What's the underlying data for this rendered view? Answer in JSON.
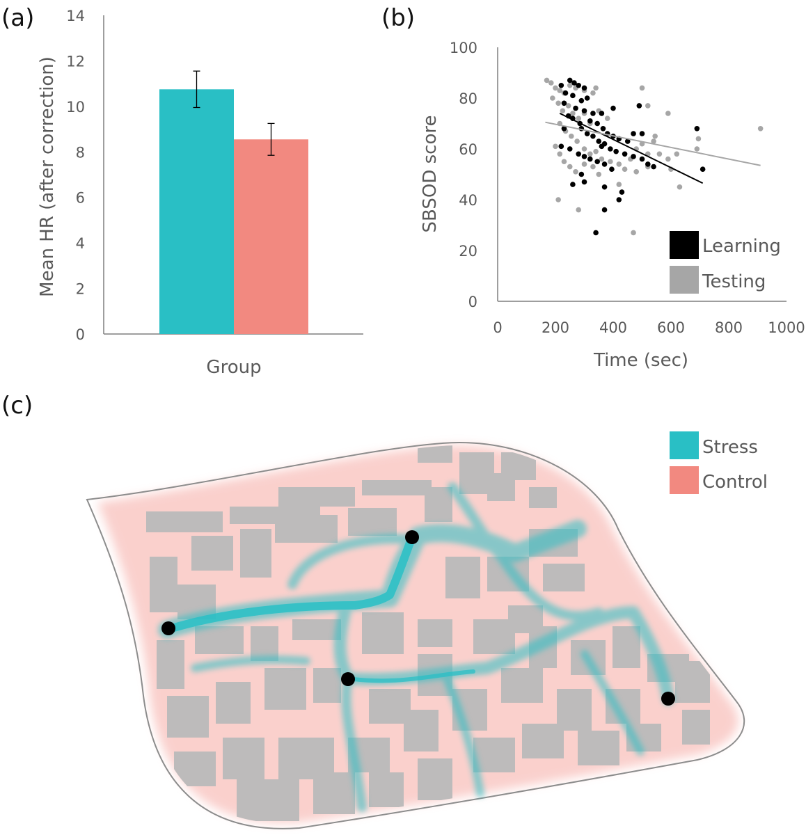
{
  "panels": {
    "a": "(a)",
    "b": "(b)",
    "c": "(c)"
  },
  "colors": {
    "stress": "#29bfc5",
    "control": "#f28980",
    "learning": "#000000",
    "testing": "#a6a6a6",
    "building": "#bdbbbb"
  },
  "chart_data": [
    {
      "id": "a",
      "type": "bar",
      "title": "",
      "xlabel": "Group",
      "ylabel": "Mean HR (after correction)",
      "ylim": [
        0,
        14
      ],
      "yticks": [
        0,
        2,
        4,
        6,
        8,
        10,
        12,
        14
      ],
      "grid": false,
      "series": [
        {
          "name": "Stress",
          "value": 10.75,
          "error": 0.8
        },
        {
          "name": "Control",
          "value": 8.55,
          "error": 0.7
        }
      ]
    },
    {
      "id": "b",
      "type": "scatter",
      "title": "",
      "xlabel": "Time (sec)",
      "ylabel": "SBSOD score",
      "xlim": [
        0,
        1000
      ],
      "ylim": [
        0,
        100
      ],
      "xticks": [
        0,
        200,
        400,
        600,
        800,
        1000
      ],
      "yticks": [
        0,
        20,
        40,
        60,
        80,
        100
      ],
      "legend_position": "bottom-right",
      "series": [
        {
          "name": "Learning",
          "points": [
            [
              220,
              85
            ],
            [
              250,
              87
            ],
            [
              265,
              86
            ],
            [
              280,
              85
            ],
            [
              300,
              84
            ],
            [
              235,
              82
            ],
            [
              260,
              81
            ],
            [
              290,
              79
            ],
            [
              310,
              80
            ],
            [
              230,
              78
            ],
            [
              270,
              76
            ],
            [
              300,
              75
            ],
            [
              330,
              74
            ],
            [
              245,
              73
            ],
            [
              260,
              72
            ],
            [
              285,
              70
            ],
            [
              320,
              71
            ],
            [
              345,
              70
            ],
            [
              365,
              68
            ],
            [
              380,
              66
            ],
            [
              400,
              65
            ],
            [
              360,
              74
            ],
            [
              400,
              76
            ],
            [
              420,
              64
            ],
            [
              450,
              63
            ],
            [
              470,
              66
            ],
            [
              290,
              68
            ],
            [
              310,
              66
            ],
            [
              330,
              65
            ],
            [
              350,
              63
            ],
            [
              370,
              62
            ],
            [
              390,
              60
            ],
            [
              410,
              59
            ],
            [
              440,
              58
            ],
            [
              470,
              57
            ],
            [
              500,
              56
            ],
            [
              520,
              54
            ],
            [
              540,
              53
            ],
            [
              220,
              61
            ],
            [
              250,
              60
            ],
            [
              280,
              58
            ],
            [
              300,
              57
            ],
            [
              320,
              56
            ],
            [
              345,
              55
            ],
            [
              370,
              54
            ],
            [
              395,
              52
            ],
            [
              290,
              50
            ],
            [
              300,
              47
            ],
            [
              260,
              46
            ],
            [
              370,
              45
            ],
            [
              430,
              43
            ],
            [
              420,
              40
            ],
            [
              370,
              36
            ],
            [
              340,
              27
            ],
            [
              710,
              52
            ],
            [
              690,
              68
            ],
            [
              490,
              77
            ],
            [
              360,
              61
            ],
            [
              500,
              66
            ],
            [
              230,
              68
            ]
          ]
        },
        {
          "name": "Testing",
          "points": [
            [
              170,
              87
            ],
            [
              185,
              86
            ],
            [
              200,
              84
            ],
            [
              215,
              83
            ],
            [
              230,
              82
            ],
            [
              250,
              85
            ],
            [
              270,
              84
            ],
            [
              300,
              83
            ],
            [
              330,
              82
            ],
            [
              340,
              84
            ],
            [
              190,
              80
            ],
            [
              210,
              78
            ],
            [
              225,
              75
            ],
            [
              245,
              77
            ],
            [
              260,
              74
            ],
            [
              280,
              72
            ],
            [
              300,
              74
            ],
            [
              320,
              70
            ],
            [
              350,
              75
            ],
            [
              380,
              72
            ],
            [
              215,
              70
            ],
            [
              235,
              67
            ],
            [
              255,
              65
            ],
            [
              275,
              63
            ],
            [
              300,
              60
            ],
            [
              320,
              58
            ],
            [
              340,
              59
            ],
            [
              360,
              56
            ],
            [
              390,
              55
            ],
            [
              420,
              54
            ],
            [
              440,
              52
            ],
            [
              460,
              56
            ],
            [
              480,
              60
            ],
            [
              500,
              62
            ],
            [
              520,
              58
            ],
            [
              540,
              63
            ],
            [
              560,
              58
            ],
            [
              590,
              56
            ],
            [
              620,
              58
            ],
            [
              200,
              61
            ],
            [
              215,
              58
            ],
            [
              230,
              55
            ],
            [
              250,
              53
            ],
            [
              270,
              51
            ],
            [
              300,
              54
            ],
            [
              330,
              53
            ],
            [
              350,
              50
            ],
            [
              210,
              40
            ],
            [
              280,
              36
            ],
            [
              420,
              46
            ],
            [
              470,
              27
            ],
            [
              500,
              84
            ],
            [
              520,
              77
            ],
            [
              590,
              74
            ],
            [
              690,
              60
            ],
            [
              695,
              64
            ],
            [
              910,
              68
            ],
            [
              480,
              51
            ],
            [
              520,
              53
            ],
            [
              545,
              65
            ],
            [
              600,
              52
            ],
            [
              630,
              45
            ]
          ]
        }
      ],
      "trendlines": [
        {
          "series": "Learning",
          "from": [
            215,
            74
          ],
          "to": [
            710,
            46.5
          ]
        },
        {
          "series": "Testing",
          "from": [
            165,
            70.5
          ],
          "to": [
            910,
            53.5
          ]
        }
      ]
    }
  ],
  "map": {
    "legend": [
      {
        "label": "Stress"
      },
      {
        "label": "Control"
      }
    ]
  }
}
